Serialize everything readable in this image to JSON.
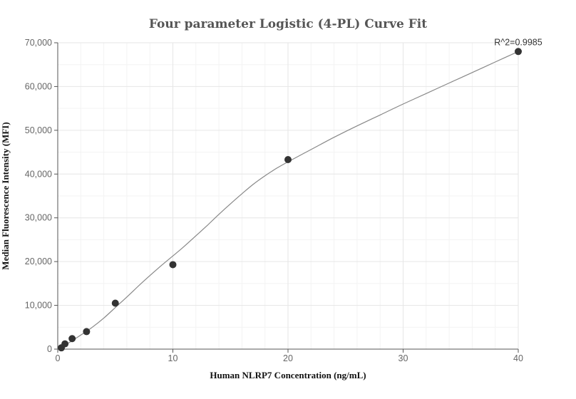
{
  "chart_data": {
    "type": "scatter",
    "title": "Four parameter Logistic (4-PL) Curve Fit",
    "xlabel": "Human NLRP7 Concentration (ng/mL)",
    "ylabel": "Median Fluorescence Intensity (MFI)",
    "xlim": [
      0,
      40
    ],
    "ylim": [
      0,
      70000
    ],
    "x_ticks": [
      0,
      10,
      20,
      30,
      40
    ],
    "x_tick_labels": [
      "0",
      "10",
      "20",
      "30",
      "40"
    ],
    "y_ticks": [
      0,
      10000,
      20000,
      30000,
      40000,
      50000,
      60000,
      70000
    ],
    "y_tick_labels": [
      "0",
      "10,000",
      "20,000",
      "30,000",
      "40,000",
      "50,000",
      "60,000",
      "70,000"
    ],
    "grid": true,
    "points": {
      "x": [
        0.3125,
        0.625,
        1.25,
        2.5,
        5,
        10,
        20,
        40
      ],
      "y": [
        300,
        1200,
        2400,
        4000,
        10500,
        19300,
        43300,
        68000
      ]
    },
    "fit_curve": {
      "x": [
        0,
        1,
        2,
        3,
        4,
        5,
        6,
        7,
        8,
        9,
        10,
        11,
        12,
        13,
        14,
        15,
        16,
        17,
        18,
        19,
        20,
        22,
        24,
        26,
        28,
        30,
        32,
        34,
        36,
        38,
        40
      ],
      "y": [
        0,
        1500,
        3200,
        5000,
        7100,
        9500,
        11900,
        14400,
        16800,
        19100,
        21300,
        23500,
        25900,
        28300,
        30800,
        33200,
        35500,
        37700,
        39600,
        41300,
        42800,
        45600,
        48400,
        51000,
        53500,
        56000,
        58400,
        60800,
        63200,
        65600,
        68000
      ]
    },
    "annotation": "R^2=0.9985"
  }
}
